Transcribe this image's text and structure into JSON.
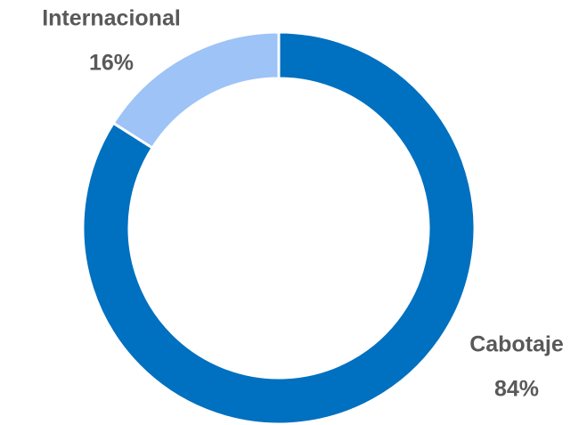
{
  "chart_data": {
    "type": "donut",
    "categories": [
      "Cabotaje",
      "Internacional"
    ],
    "values": [
      84,
      16
    ],
    "value_labels": [
      "84%",
      "16%"
    ],
    "colors": [
      "#0070c0",
      "#9dc3f7"
    ]
  }
}
